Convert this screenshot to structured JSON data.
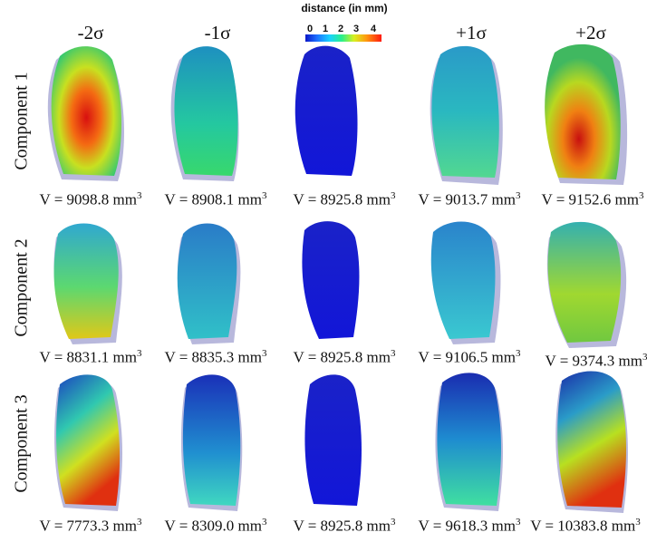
{
  "legend": {
    "title": "distance (in mm)",
    "ticks": [
      "0",
      "1",
      "2",
      "3",
      "4"
    ]
  },
  "columns": [
    "-2σ",
    "-1σ",
    "",
    "+1σ",
    "+2σ"
  ],
  "rows": [
    {
      "label": "Component 1",
      "volumes": [
        "V = 9098.8 mm",
        "V = 8908.1 mm",
        "V = 8925.8 mm",
        "V = 9013.7 mm",
        "V = 9152.6 mm"
      ],
      "unit_exp": "3"
    },
    {
      "label": "Component 2",
      "volumes": [
        "V = 8831.1 mm",
        "V = 8835.3 mm",
        "V = 8925.8 mm",
        "V = 9106.5 mm",
        "V = 9374.3 mm"
      ],
      "unit_exp": "3"
    },
    {
      "label": "Component 3",
      "volumes": [
        "V = 7773.3 mm",
        "V = 8309.0 mm",
        "V = 8925.8 mm",
        "V = 9618.3 mm",
        "V = 10383.8 mm"
      ],
      "unit_exp": "3"
    }
  ],
  "colors": {
    "mean_shape": "#1a1ad8",
    "outline_shadow": "#b8b8dc"
  }
}
